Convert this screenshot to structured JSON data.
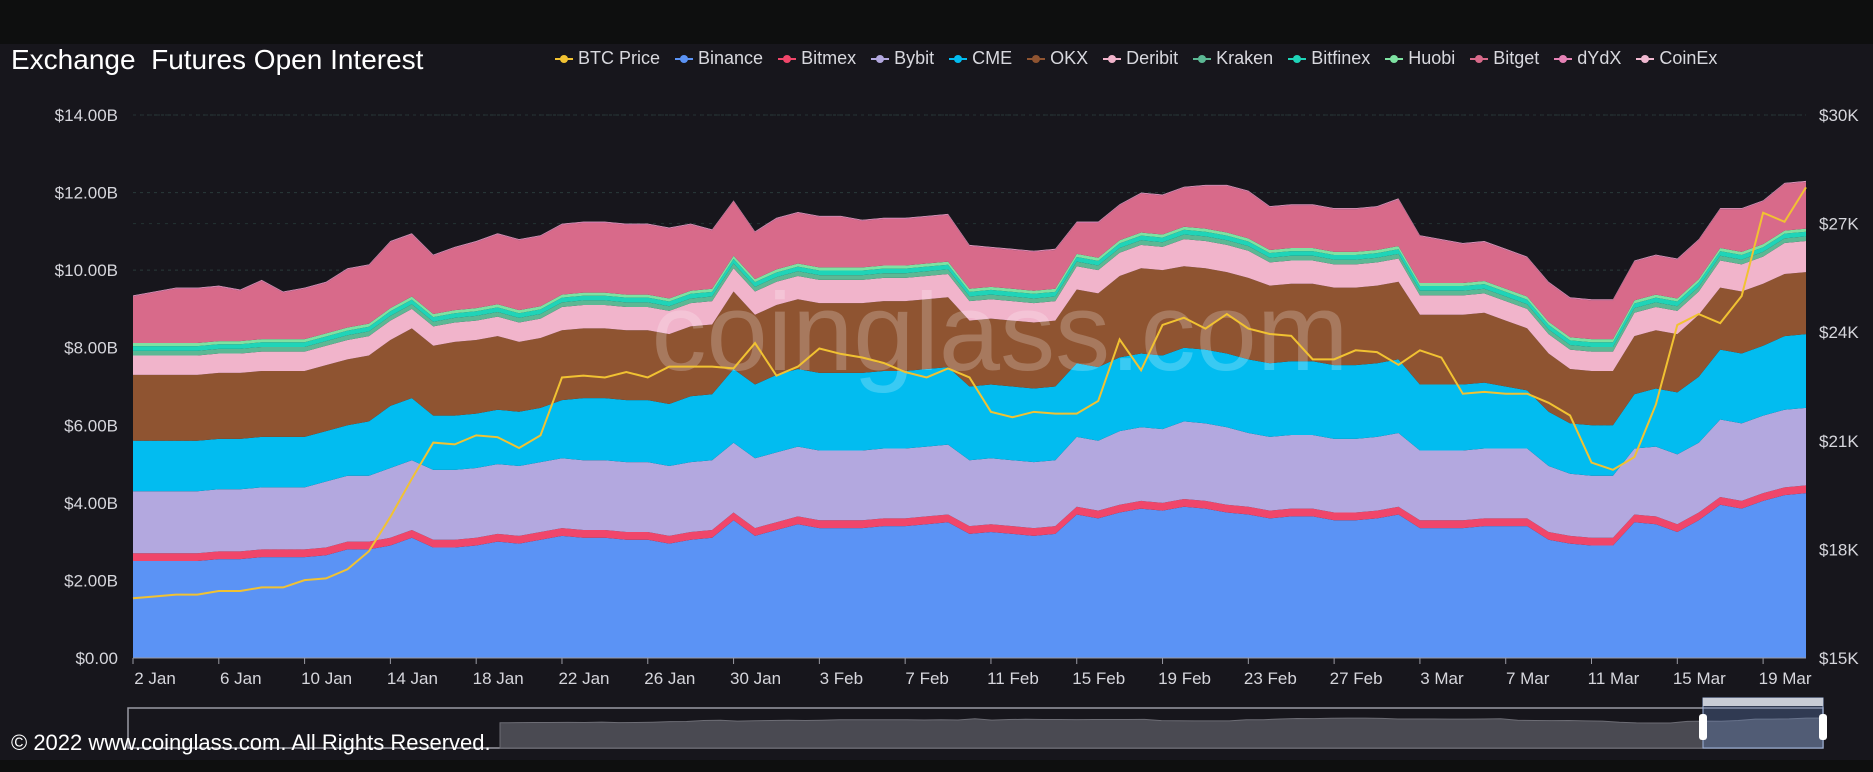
{
  "title": "Exchange  Futures Open Interest",
  "copyright": "© 2022 www.coinglass.com. All Rights Reserved.",
  "watermark": "coinglass.com",
  "chart_data": {
    "type": "area",
    "stacked": true,
    "x": [
      "2 Jan",
      "3 Jan",
      "4 Jan",
      "5 Jan",
      "6 Jan",
      "7 Jan",
      "8 Jan",
      "9 Jan",
      "10 Jan",
      "11 Jan",
      "12 Jan",
      "13 Jan",
      "14 Jan",
      "15 Jan",
      "16 Jan",
      "17 Jan",
      "18 Jan",
      "19 Jan",
      "20 Jan",
      "21 Jan",
      "22 Jan",
      "23 Jan",
      "24 Jan",
      "25 Jan",
      "26 Jan",
      "27 Jan",
      "28 Jan",
      "29 Jan",
      "30 Jan",
      "31 Jan",
      "1 Feb",
      "2 Feb",
      "3 Feb",
      "4 Feb",
      "5 Feb",
      "6 Feb",
      "7 Feb",
      "8 Feb",
      "9 Feb",
      "10 Feb",
      "11 Feb",
      "12 Feb",
      "13 Feb",
      "14 Feb",
      "15 Feb",
      "16 Feb",
      "17 Feb",
      "18 Feb",
      "19 Feb",
      "20 Feb",
      "21 Feb",
      "22 Feb",
      "23 Feb",
      "24 Feb",
      "25 Feb",
      "26 Feb",
      "27 Feb",
      "28 Feb",
      "1 Mar",
      "2 Mar",
      "3 Mar",
      "4 Mar",
      "5 Mar",
      "6 Mar",
      "7 Mar",
      "8 Mar",
      "9 Mar",
      "10 Mar",
      "11 Mar",
      "12 Mar",
      "13 Mar",
      "14 Mar",
      "15 Mar",
      "16 Mar",
      "17 Mar",
      "18 Mar",
      "19 Mar",
      "20 Mar",
      "21 Mar"
    ],
    "x_ticks": [
      "2 Jan",
      "6 Jan",
      "10 Jan",
      "14 Jan",
      "18 Jan",
      "22 Jan",
      "26 Jan",
      "30 Jan",
      "3 Feb",
      "7 Feb",
      "11 Feb",
      "15 Feb",
      "19 Feb",
      "23 Feb",
      "27 Feb",
      "3 Mar",
      "7 Mar",
      "11 Mar",
      "15 Mar",
      "19 Mar"
    ],
    "y_left": {
      "ticks": [
        "$0.00",
        "$2.00B",
        "$4.00B",
        "$6.00B",
        "$8.00B",
        "$10.00B",
        "$12.00B",
        "$14.00B"
      ],
      "ylim": [
        0,
        14
      ],
      "unit": "B USD"
    },
    "y_right": {
      "ticks": [
        "$15K",
        "$18K",
        "$21K",
        "$24K",
        "$27K",
        "$30K"
      ],
      "ylim": [
        15000,
        30000
      ]
    },
    "legend_position": "top-right",
    "series_colors": {
      "Binance": "#5b93f5",
      "Bitmex": "#f0466a",
      "Bybit": "#b3a8df",
      "CME": "#02bcf0",
      "OKX": "#8f5431",
      "Deribit": "#f1b4cb",
      "Kraken": "#5cb894",
      "Bitfinex": "#1fd4b8",
      "Huobi": "#7ee2a2",
      "Bitget": "#d86a8a",
      "dYdX": "#e682b6",
      "CoinEx": "#f0b8d0",
      "BTC Price": "#f1c232"
    },
    "legend": [
      "BTC Price",
      "Binance",
      "Bitmex",
      "Bybit",
      "CME",
      "OKX",
      "Deribit",
      "Kraken",
      "Bitfinex",
      "Huobi",
      "Bitget",
      "dYdX",
      "CoinEx"
    ],
    "series": [
      {
        "name": "Binance",
        "values": [
          2.5,
          2.5,
          2.5,
          2.5,
          2.55,
          2.55,
          2.6,
          2.6,
          2.6,
          2.65,
          2.8,
          2.8,
          2.9,
          3.1,
          2.85,
          2.85,
          2.9,
          3.0,
          2.95,
          3.05,
          3.15,
          3.1,
          3.1,
          3.05,
          3.05,
          2.95,
          3.05,
          3.1,
          3.55,
          3.15,
          3.3,
          3.45,
          3.35,
          3.35,
          3.35,
          3.4,
          3.4,
          3.45,
          3.5,
          3.2,
          3.25,
          3.2,
          3.15,
          3.2,
          3.7,
          3.6,
          3.75,
          3.85,
          3.8,
          3.9,
          3.85,
          3.75,
          3.7,
          3.6,
          3.65,
          3.65,
          3.55,
          3.55,
          3.6,
          3.7,
          3.35,
          3.35,
          3.35,
          3.4,
          3.4,
          3.4,
          3.05,
          2.95,
          2.9,
          2.9,
          3.5,
          3.45,
          3.25,
          3.55,
          3.95,
          3.85,
          4.05,
          4.2,
          4.25
        ]
      },
      {
        "name": "Bitmex",
        "values": [
          0.2,
          0.2,
          0.2,
          0.2,
          0.2,
          0.2,
          0.2,
          0.2,
          0.2,
          0.2,
          0.2,
          0.2,
          0.2,
          0.2,
          0.2,
          0.2,
          0.2,
          0.2,
          0.2,
          0.2,
          0.2,
          0.2,
          0.2,
          0.2,
          0.2,
          0.2,
          0.2,
          0.2,
          0.2,
          0.2,
          0.2,
          0.2,
          0.2,
          0.2,
          0.2,
          0.2,
          0.2,
          0.2,
          0.2,
          0.2,
          0.2,
          0.2,
          0.2,
          0.2,
          0.2,
          0.2,
          0.2,
          0.2,
          0.2,
          0.2,
          0.2,
          0.2,
          0.2,
          0.2,
          0.2,
          0.2,
          0.2,
          0.2,
          0.2,
          0.2,
          0.2,
          0.2,
          0.2,
          0.2,
          0.2,
          0.2,
          0.2,
          0.2,
          0.2,
          0.2,
          0.2,
          0.2,
          0.2,
          0.2,
          0.2,
          0.2,
          0.2,
          0.2,
          0.2
        ]
      },
      {
        "name": "Bybit",
        "values": [
          1.6,
          1.6,
          1.6,
          1.6,
          1.6,
          1.6,
          1.6,
          1.6,
          1.6,
          1.7,
          1.7,
          1.7,
          1.8,
          1.8,
          1.8,
          1.8,
          1.8,
          1.8,
          1.8,
          1.8,
          1.8,
          1.8,
          1.8,
          1.8,
          1.8,
          1.8,
          1.8,
          1.8,
          1.8,
          1.8,
          1.8,
          1.8,
          1.8,
          1.8,
          1.8,
          1.8,
          1.8,
          1.8,
          1.8,
          1.7,
          1.7,
          1.7,
          1.7,
          1.7,
          1.8,
          1.8,
          1.9,
          1.9,
          1.9,
          2.0,
          2.0,
          2.0,
          1.9,
          1.9,
          1.9,
          1.9,
          1.9,
          1.9,
          1.9,
          1.9,
          1.8,
          1.8,
          1.8,
          1.8,
          1.8,
          1.8,
          1.7,
          1.6,
          1.6,
          1.6,
          1.7,
          1.8,
          1.8,
          1.8,
          2.0,
          2.0,
          2.0,
          2.0,
          2.0
        ]
      },
      {
        "name": "CME",
        "values": [
          1.3,
          1.3,
          1.3,
          1.3,
          1.3,
          1.3,
          1.3,
          1.3,
          1.3,
          1.3,
          1.3,
          1.4,
          1.6,
          1.6,
          1.4,
          1.4,
          1.4,
          1.4,
          1.4,
          1.4,
          1.5,
          1.6,
          1.6,
          1.6,
          1.6,
          1.6,
          1.7,
          1.7,
          1.9,
          1.9,
          2.0,
          2.0,
          2.0,
          2.0,
          2.0,
          2.0,
          2.0,
          2.0,
          2.0,
          1.9,
          1.9,
          1.9,
          1.9,
          1.9,
          1.9,
          1.9,
          1.9,
          1.9,
          1.9,
          1.9,
          1.9,
          1.9,
          1.9,
          1.9,
          1.9,
          1.9,
          1.9,
          1.9,
          1.9,
          1.9,
          1.7,
          1.7,
          1.7,
          1.7,
          1.6,
          1.5,
          1.4,
          1.3,
          1.3,
          1.3,
          1.4,
          1.5,
          1.6,
          1.7,
          1.8,
          1.8,
          1.8,
          1.9,
          1.9
        ]
      },
      {
        "name": "OKX",
        "values": [
          1.7,
          1.7,
          1.7,
          1.7,
          1.7,
          1.7,
          1.7,
          1.7,
          1.7,
          1.7,
          1.7,
          1.7,
          1.7,
          1.8,
          1.8,
          1.9,
          1.9,
          1.9,
          1.8,
          1.8,
          1.8,
          1.8,
          1.8,
          1.8,
          1.8,
          1.8,
          1.8,
          1.8,
          2.0,
          1.8,
          1.8,
          1.8,
          1.8,
          1.8,
          1.8,
          1.8,
          1.8,
          1.8,
          1.8,
          1.7,
          1.7,
          1.7,
          1.7,
          1.7,
          1.9,
          1.9,
          2.1,
          2.2,
          2.2,
          2.1,
          2.1,
          2.1,
          2.1,
          2.0,
          2.0,
          2.0,
          2.0,
          2.0,
          2.0,
          2.0,
          1.8,
          1.8,
          1.8,
          1.8,
          1.7,
          1.6,
          1.5,
          1.4,
          1.4,
          1.4,
          1.5,
          1.5,
          1.5,
          1.6,
          1.6,
          1.6,
          1.6,
          1.6,
          1.6
        ]
      },
      {
        "name": "Deribit",
        "values": [
          0.5,
          0.5,
          0.5,
          0.5,
          0.5,
          0.5,
          0.5,
          0.5,
          0.5,
          0.5,
          0.5,
          0.5,
          0.5,
          0.5,
          0.5,
          0.5,
          0.5,
          0.5,
          0.5,
          0.5,
          0.6,
          0.6,
          0.6,
          0.6,
          0.6,
          0.6,
          0.6,
          0.6,
          0.6,
          0.6,
          0.6,
          0.6,
          0.6,
          0.6,
          0.6,
          0.6,
          0.6,
          0.6,
          0.6,
          0.5,
          0.5,
          0.5,
          0.5,
          0.5,
          0.6,
          0.6,
          0.6,
          0.6,
          0.6,
          0.7,
          0.7,
          0.7,
          0.7,
          0.6,
          0.6,
          0.6,
          0.6,
          0.6,
          0.6,
          0.6,
          0.5,
          0.5,
          0.5,
          0.5,
          0.5,
          0.5,
          0.5,
          0.5,
          0.5,
          0.5,
          0.6,
          0.6,
          0.6,
          0.6,
          0.7,
          0.7,
          0.7,
          0.8,
          0.8
        ]
      },
      {
        "name": "Kraken",
        "values": [
          0.12,
          0.12,
          0.12,
          0.12,
          0.12,
          0.12,
          0.12,
          0.12,
          0.12,
          0.12,
          0.12,
          0.12,
          0.12,
          0.12,
          0.12,
          0.12,
          0.12,
          0.12,
          0.12,
          0.12,
          0.12,
          0.12,
          0.12,
          0.12,
          0.12,
          0.12,
          0.12,
          0.12,
          0.12,
          0.12,
          0.12,
          0.12,
          0.12,
          0.12,
          0.12,
          0.12,
          0.12,
          0.12,
          0.12,
          0.12,
          0.12,
          0.12,
          0.12,
          0.12,
          0.12,
          0.12,
          0.12,
          0.12,
          0.12,
          0.12,
          0.12,
          0.12,
          0.12,
          0.12,
          0.12,
          0.12,
          0.12,
          0.12,
          0.12,
          0.12,
          0.12,
          0.12,
          0.12,
          0.12,
          0.12,
          0.12,
          0.12,
          0.12,
          0.12,
          0.12,
          0.12,
          0.12,
          0.12,
          0.12,
          0.12,
          0.12,
          0.12,
          0.12,
          0.12
        ]
      },
      {
        "name": "Bitfinex",
        "values": [
          0.12,
          0.12,
          0.12,
          0.12,
          0.12,
          0.12,
          0.12,
          0.12,
          0.12,
          0.12,
          0.12,
          0.12,
          0.12,
          0.12,
          0.12,
          0.12,
          0.12,
          0.12,
          0.12,
          0.12,
          0.12,
          0.12,
          0.12,
          0.12,
          0.12,
          0.12,
          0.12,
          0.12,
          0.12,
          0.12,
          0.12,
          0.12,
          0.12,
          0.12,
          0.12,
          0.12,
          0.12,
          0.12,
          0.12,
          0.12,
          0.12,
          0.12,
          0.12,
          0.12,
          0.12,
          0.12,
          0.12,
          0.12,
          0.12,
          0.12,
          0.12,
          0.12,
          0.12,
          0.12,
          0.12,
          0.12,
          0.12,
          0.12,
          0.12,
          0.12,
          0.12,
          0.12,
          0.12,
          0.12,
          0.12,
          0.12,
          0.12,
          0.12,
          0.12,
          0.12,
          0.12,
          0.12,
          0.12,
          0.12,
          0.12,
          0.12,
          0.12,
          0.12,
          0.12
        ]
      },
      {
        "name": "Huobi",
        "values": [
          0.08,
          0.08,
          0.08,
          0.08,
          0.08,
          0.08,
          0.08,
          0.08,
          0.08,
          0.08,
          0.08,
          0.08,
          0.08,
          0.08,
          0.08,
          0.08,
          0.08,
          0.08,
          0.08,
          0.08,
          0.08,
          0.08,
          0.08,
          0.08,
          0.08,
          0.08,
          0.08,
          0.08,
          0.08,
          0.08,
          0.08,
          0.08,
          0.08,
          0.08,
          0.08,
          0.08,
          0.08,
          0.08,
          0.08,
          0.08,
          0.08,
          0.08,
          0.08,
          0.08,
          0.08,
          0.08,
          0.08,
          0.08,
          0.08,
          0.08,
          0.08,
          0.08,
          0.08,
          0.08,
          0.08,
          0.08,
          0.08,
          0.08,
          0.08,
          0.08,
          0.08,
          0.08,
          0.08,
          0.08,
          0.08,
          0.08,
          0.08,
          0.08,
          0.08,
          0.08,
          0.08,
          0.08,
          0.08,
          0.08,
          0.08,
          0.08,
          0.08,
          0.08,
          0.08
        ]
      },
      {
        "name": "Bitget",
        "values": [
          1.2,
          1.3,
          1.4,
          1.4,
          1.4,
          1.3,
          1.5,
          1.2,
          1.3,
          1.3,
          1.5,
          1.5,
          1.7,
          1.6,
          1.5,
          1.6,
          1.7,
          1.8,
          1.8,
          1.8,
          1.8,
          1.8,
          1.8,
          1.8,
          1.8,
          1.8,
          1.7,
          1.5,
          1.4,
          1.2,
          1.3,
          1.3,
          1.3,
          1.3,
          1.2,
          1.2,
          1.2,
          1.2,
          1.2,
          1.1,
          1.0,
          1.0,
          1.0,
          1.0,
          0.8,
          0.9,
          0.9,
          1.0,
          1.0,
          1.0,
          1.1,
          1.2,
          1.2,
          1.1,
          1.1,
          1.1,
          1.1,
          1.1,
          1.1,
          1.2,
          1.2,
          1.1,
          1.0,
          1.0,
          1.0,
          1.0,
          1.0,
          1.0,
          1.0,
          1.0,
          1.0,
          1.0,
          1.0,
          1.0,
          1.0,
          1.1,
          1.1,
          1.2,
          1.2
        ]
      },
      {
        "name": "dYdX",
        "values": [
          0.02,
          0.02,
          0.02,
          0.02,
          0.02,
          0.02,
          0.02,
          0.02,
          0.02,
          0.02,
          0.02,
          0.02,
          0.02,
          0.02,
          0.02,
          0.02,
          0.02,
          0.02,
          0.02,
          0.02,
          0.02,
          0.02,
          0.02,
          0.02,
          0.02,
          0.02,
          0.02,
          0.02,
          0.02,
          0.02,
          0.02,
          0.02,
          0.02,
          0.02,
          0.02,
          0.02,
          0.02,
          0.02,
          0.02,
          0.02,
          0.02,
          0.02,
          0.02,
          0.02,
          0.02,
          0.02,
          0.02,
          0.02,
          0.02,
          0.02,
          0.02,
          0.02,
          0.02,
          0.02,
          0.02,
          0.02,
          0.02,
          0.02,
          0.02,
          0.02,
          0.02,
          0.02,
          0.02,
          0.02,
          0.02,
          0.02,
          0.02,
          0.02,
          0.02,
          0.02,
          0.02,
          0.02,
          0.02,
          0.02,
          0.02,
          0.02,
          0.02,
          0.02,
          0.02
        ]
      },
      {
        "name": "CoinEx",
        "values": [
          0.01,
          0.01,
          0.01,
          0.01,
          0.01,
          0.01,
          0.01,
          0.01,
          0.01,
          0.01,
          0.01,
          0.01,
          0.01,
          0.01,
          0.01,
          0.01,
          0.01,
          0.01,
          0.01,
          0.01,
          0.01,
          0.01,
          0.01,
          0.01,
          0.01,
          0.01,
          0.01,
          0.01,
          0.01,
          0.01,
          0.01,
          0.01,
          0.01,
          0.01,
          0.01,
          0.01,
          0.01,
          0.01,
          0.01,
          0.01,
          0.01,
          0.01,
          0.01,
          0.01,
          0.01,
          0.01,
          0.01,
          0.01,
          0.01,
          0.01,
          0.01,
          0.01,
          0.01,
          0.01,
          0.01,
          0.01,
          0.01,
          0.01,
          0.01,
          0.01,
          0.01,
          0.01,
          0.01,
          0.01,
          0.01,
          0.01,
          0.01,
          0.01,
          0.01,
          0.01,
          0.01,
          0.01,
          0.01,
          0.01,
          0.01,
          0.01,
          0.01,
          0.01,
          0.01
        ]
      }
    ],
    "line_series": {
      "name": "BTC Price",
      "axis": "right",
      "values": [
        16650,
        16700,
        16750,
        16750,
        16850,
        16850,
        16950,
        16950,
        17150,
        17200,
        17450,
        17950,
        18900,
        19950,
        20950,
        20900,
        21150,
        21100,
        20800,
        21150,
        22750,
        22800,
        22750,
        22900,
        22750,
        23050,
        23050,
        23050,
        23000,
        23700,
        22800,
        23050,
        23550,
        23400,
        23300,
        23150,
        22900,
        22750,
        23000,
        22750,
        21800,
        21650,
        21800,
        21750,
        21750,
        22100,
        23800,
        22950,
        24200,
        24400,
        24100,
        24500,
        24100,
        23950,
        23900,
        23250,
        23250,
        23500,
        23450,
        23100,
        23500,
        23300,
        22300,
        22350,
        22300,
        22300,
        22050,
        21700,
        20400,
        20200,
        20550,
        22000,
        24200,
        24500,
        24250,
        25000,
        27300,
        27050,
        28000
      ]
    }
  }
}
